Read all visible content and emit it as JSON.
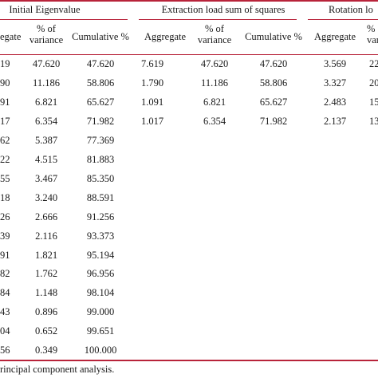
{
  "table": {
    "group_headers": [
      "Initial Eigenvalue",
      "Extraction load sum of squares",
      "Rotation lo"
    ],
    "sub_headers": {
      "g1_aggregate": "egate",
      "g1_pct_line1": "% of",
      "g1_pct_line2": "variance",
      "g1_cum": "Cumulative %",
      "g2_aggregate": "Aggregate",
      "g2_pct_line1": "% of",
      "g2_pct_line2": "variance",
      "g2_cum": "Cumulative %",
      "g3_aggregate": "Aggregate",
      "g3_pct_line1": "%",
      "g3_pct_line2": "var"
    },
    "rows": [
      {
        "init_agg": "19",
        "init_pct": "47.620",
        "init_cum": "47.620",
        "ext_agg": "7.619",
        "ext_pct": "47.620",
        "ext_cum": "47.620",
        "rot_agg": "3.569",
        "rot_pct": "22"
      },
      {
        "init_agg": "90",
        "init_pct": "11.186",
        "init_cum": "58.806",
        "ext_agg": "1.790",
        "ext_pct": "11.186",
        "ext_cum": "58.806",
        "rot_agg": "3.327",
        "rot_pct": "20"
      },
      {
        "init_agg": "91",
        "init_pct": "6.821",
        "init_cum": "65.627",
        "ext_agg": "1.091",
        "ext_pct": "6.821",
        "ext_cum": "65.627",
        "rot_agg": "2.483",
        "rot_pct": "15"
      },
      {
        "init_agg": "17",
        "init_pct": "6.354",
        "init_cum": "71.982",
        "ext_agg": "1.017",
        "ext_pct": "6.354",
        "ext_cum": "71.982",
        "rot_agg": "2.137",
        "rot_pct": "13"
      },
      {
        "init_agg": "62",
        "init_pct": "5.387",
        "init_cum": "77.369"
      },
      {
        "init_agg": "22",
        "init_pct": "4.515",
        "init_cum": "81.883"
      },
      {
        "init_agg": "55",
        "init_pct": "3.467",
        "init_cum": "85.350"
      },
      {
        "init_agg": "18",
        "init_pct": "3.240",
        "init_cum": "88.591"
      },
      {
        "init_agg": "26",
        "init_pct": "2.666",
        "init_cum": "91.256"
      },
      {
        "init_agg": "39",
        "init_pct": "2.116",
        "init_cum": "93.373"
      },
      {
        "init_agg": "91",
        "init_pct": "1.821",
        "init_cum": "95.194"
      },
      {
        "init_agg": "82",
        "init_pct": "1.762",
        "init_cum": "96.956"
      },
      {
        "init_agg": "84",
        "init_pct": "1.148",
        "init_cum": "98.104"
      },
      {
        "init_agg": "43",
        "init_pct": "0.896",
        "init_cum": "99.000"
      },
      {
        "init_agg": "04",
        "init_pct": "0.652",
        "init_cum": "99.651"
      },
      {
        "init_agg": "56",
        "init_pct": "0.349",
        "init_cum": "100.000"
      }
    ],
    "footnote": "rincipal component analysis.",
    "rule_color": "#b8233a"
  }
}
